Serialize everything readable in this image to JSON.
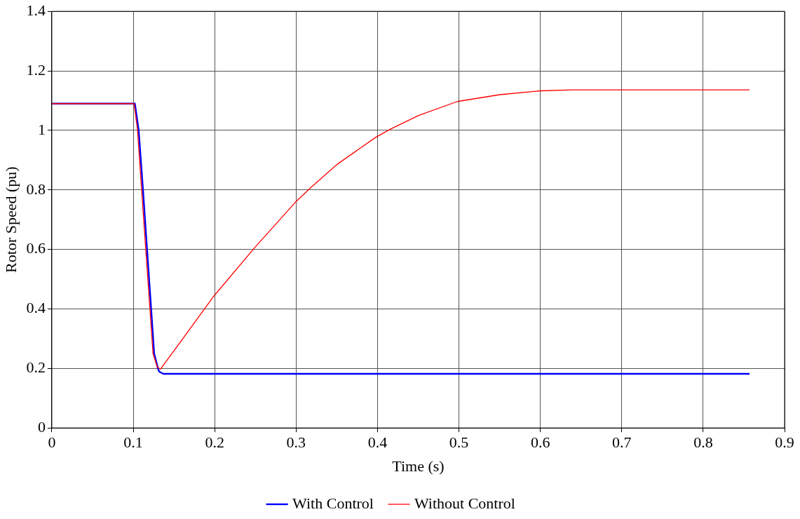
{
  "chart_data": {
    "type": "line",
    "xlabel": "Time (s)",
    "ylabel": "Rotor Speed (pu)",
    "xlim": [
      0,
      0.9
    ],
    "xticks": [
      0,
      0.1,
      0.2,
      0.3,
      0.4,
      0.5,
      0.6,
      0.7,
      0.8,
      0.9
    ],
    "ylim": [
      0,
      1.4
    ],
    "yticks": [
      0,
      0.2,
      0.4,
      0.6,
      0.8,
      1,
      1.2,
      1.4
    ],
    "grid": true,
    "legend": "bottom",
    "marker": "none",
    "line_style": "solid",
    "series": [
      {
        "name": "With Control",
        "color": "#0000ff",
        "x": [
          0,
          0.102,
          0.1066,
          0.112,
          0.1168,
          0.1218,
          0.1257,
          0.1306,
          0.132,
          0.137,
          0.857
        ],
        "values": [
          1.09,
          1.09,
          1.003,
          0.8,
          0.607,
          0.408,
          0.25,
          0.198,
          0.189,
          0.182,
          0.182
        ]
      },
      {
        "name": "Without Control",
        "color": "#ff0000",
        "x": [
          0,
          0.101,
          0.1052,
          0.1103,
          0.1152,
          0.1203,
          0.1243,
          0.1295,
          0.1336,
          0.199,
          0.2495,
          0.299,
          0.3185,
          0.351,
          0.3974,
          0.415,
          0.4505,
          0.498,
          0.55,
          0.6,
          0.64,
          0.857
        ],
        "values": [
          1.09,
          1.09,
          1.003,
          0.8,
          0.607,
          0.408,
          0.25,
          0.205,
          0.198,
          0.443,
          0.607,
          0.758,
          0.809,
          0.887,
          0.976,
          1.003,
          1.05,
          1.097,
          1.12,
          1.133,
          1.136,
          1.136
        ]
      }
    ]
  }
}
